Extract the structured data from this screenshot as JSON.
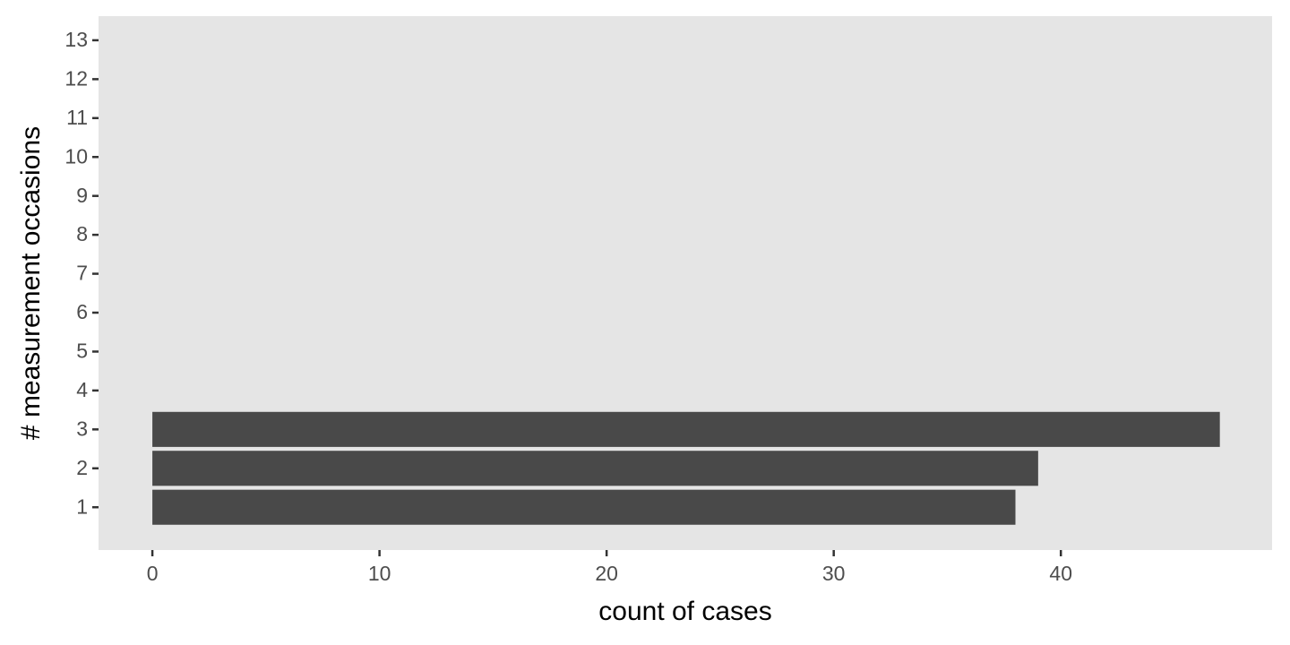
{
  "chart_data": {
    "type": "hbar",
    "x_label": "count of cases",
    "y_label": "# measurement occasions",
    "y": [
      1,
      2,
      3
    ],
    "values": [
      38,
      39,
      47
    ],
    "color": "#494949",
    "panel_color": "#e5e5e5",
    "grid": false,
    "xlim": [
      -2.37,
      49.3
    ],
    "xticks": [
      0,
      10,
      20,
      30,
      40
    ],
    "ylim": [
      -0.1,
      13.62
    ],
    "yticks": [
      1,
      2,
      3,
      4,
      5,
      6,
      7,
      8,
      9,
      10,
      11,
      12,
      13
    ]
  }
}
